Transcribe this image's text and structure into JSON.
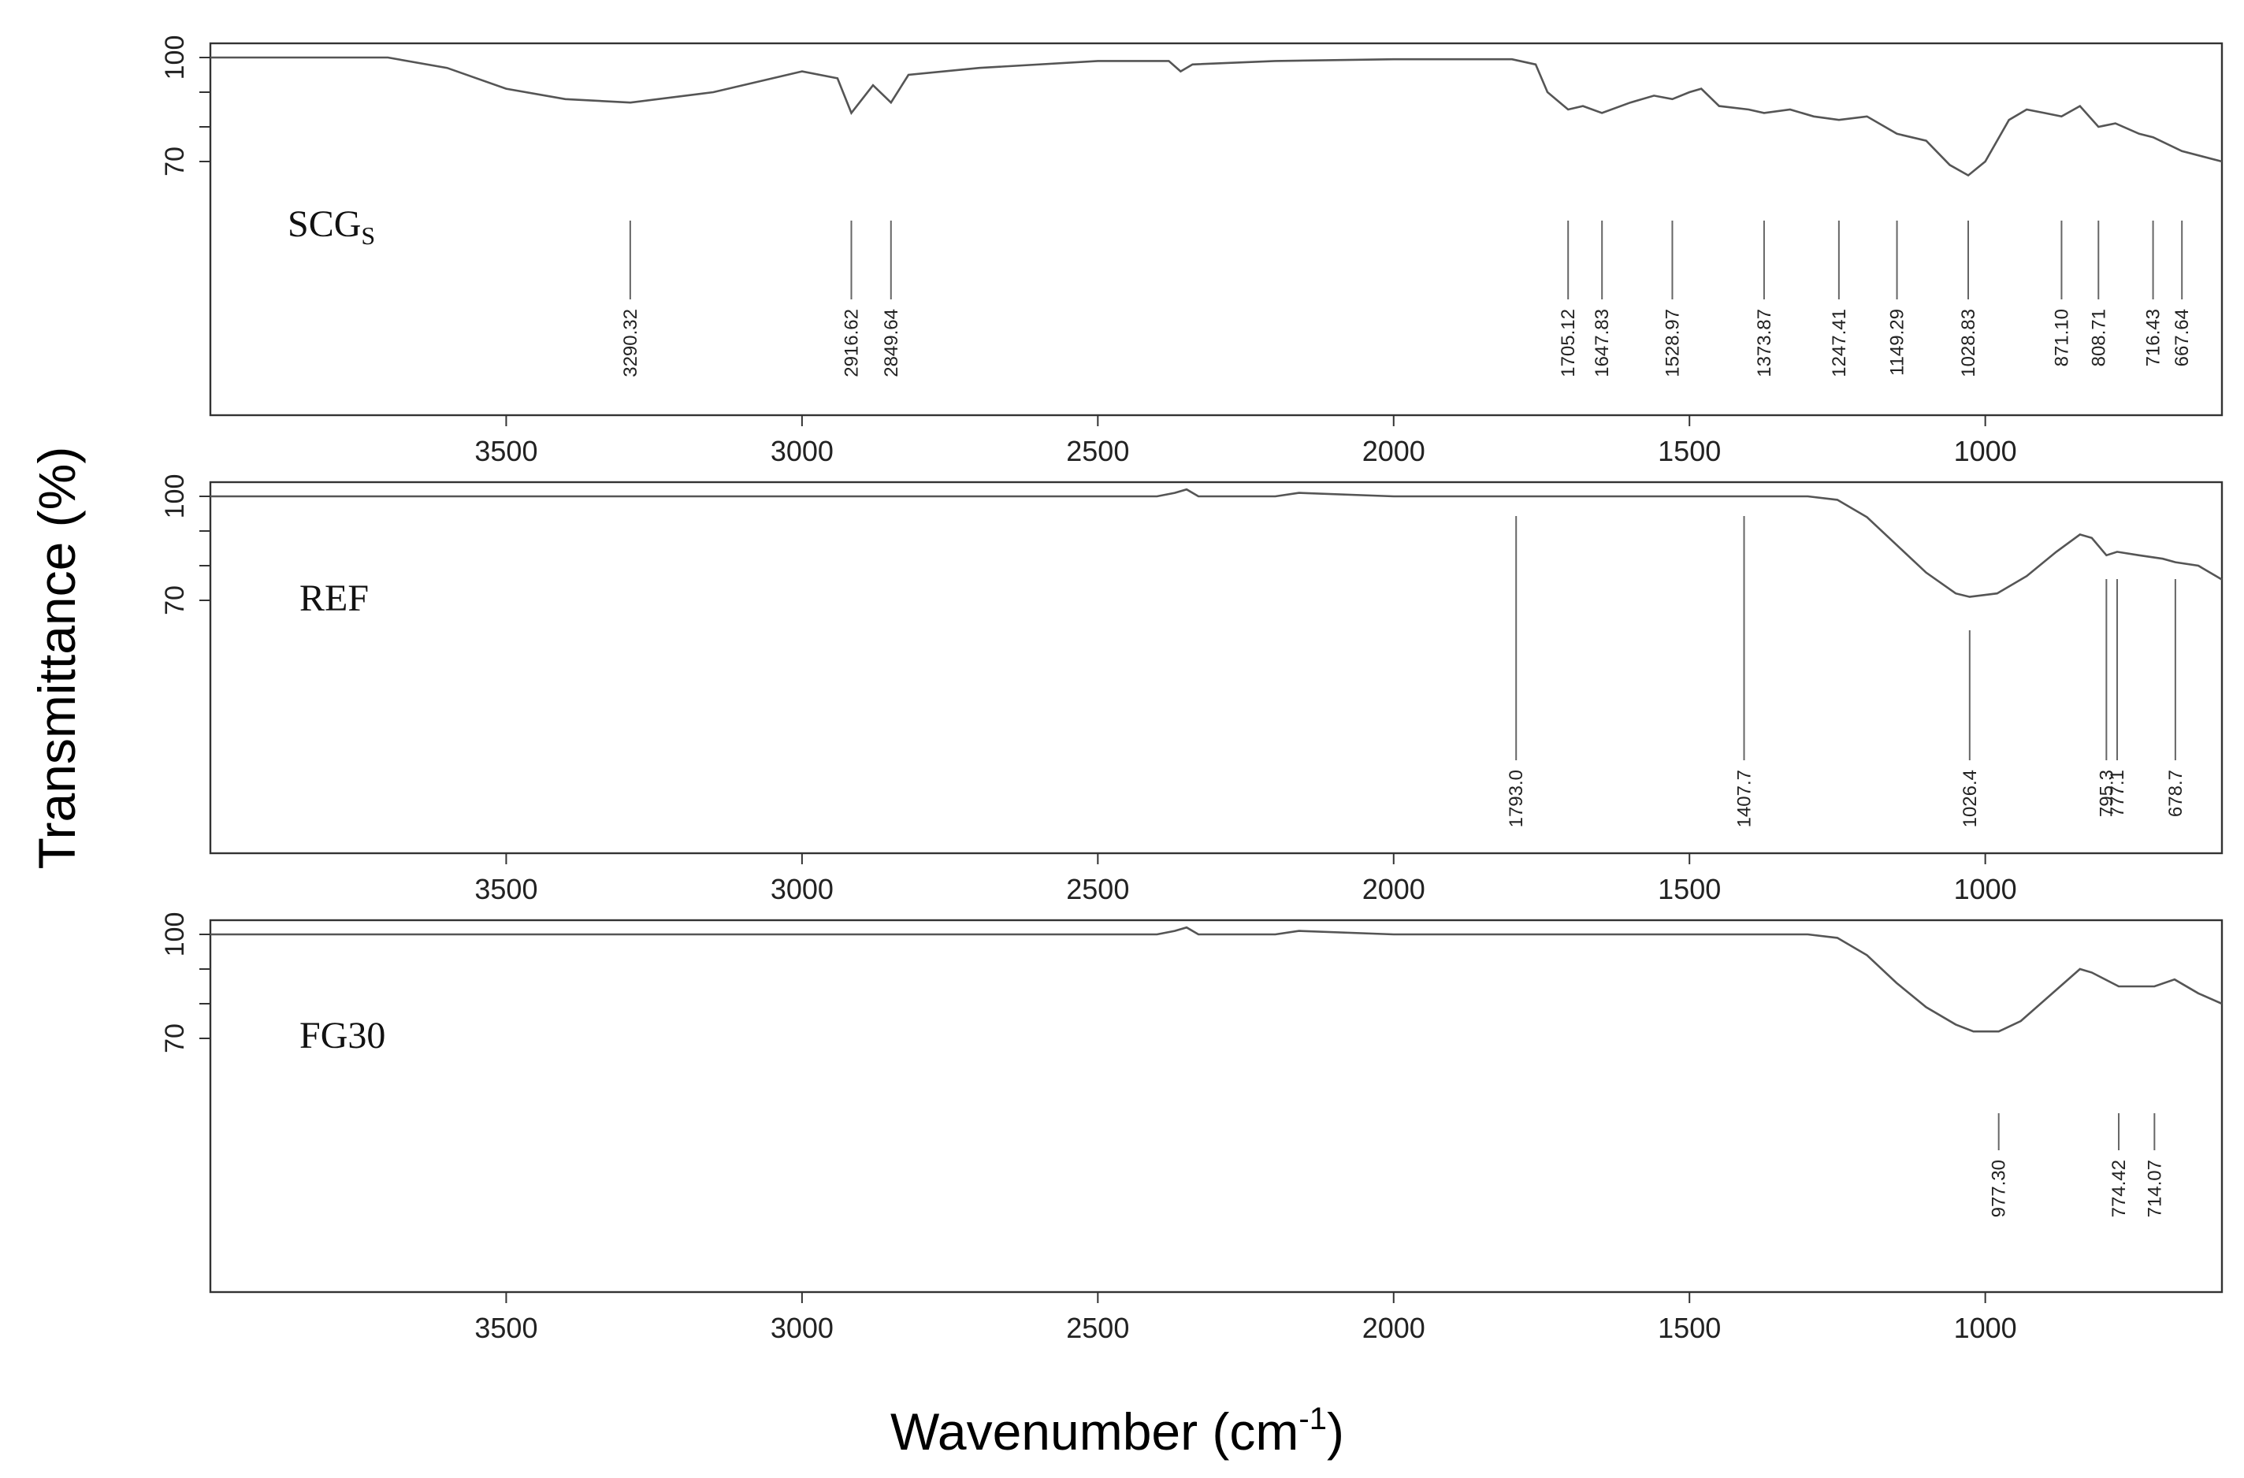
{
  "chart_data": {
    "type": "line",
    "ylabel_main": "Transmittance",
    "ylabel_unit": "(%)",
    "xlabel_main": "Wavenumber (cm",
    "xlabel_sup": "-1",
    "xlabel_end": ")",
    "xlim": [
      4000,
      600
    ],
    "x_ticks": [
      3500,
      3000,
      2500,
      2000,
      1500,
      1000
    ],
    "panels": [
      {
        "name": "SCG",
        "name_sub": "S",
        "ylim": [
          0,
          105
        ],
        "y_ticks": [
          100,
          70
        ],
        "y_minor": [
          100,
          90,
          80,
          70
        ],
        "series": [
          [
            4000,
            100
          ],
          [
            3700,
            100
          ],
          [
            3600,
            97
          ],
          [
            3500,
            91
          ],
          [
            3400,
            88
          ],
          [
            3290,
            87
          ],
          [
            3150,
            90
          ],
          [
            3000,
            96
          ],
          [
            2940,
            94
          ],
          [
            2916.62,
            84
          ],
          [
            2880,
            92
          ],
          [
            2849.64,
            87
          ],
          [
            2820,
            95
          ],
          [
            2700,
            97
          ],
          [
            2500,
            99
          ],
          [
            2380,
            99
          ],
          [
            2360,
            96
          ],
          [
            2340,
            98
          ],
          [
            2200,
            99
          ],
          [
            2000,
            99.5
          ],
          [
            1800,
            99.5
          ],
          [
            1760,
            98
          ],
          [
            1740,
            90
          ],
          [
            1705.12,
            85
          ],
          [
            1680,
            86
          ],
          [
            1647.83,
            84
          ],
          [
            1600,
            87
          ],
          [
            1560,
            89
          ],
          [
            1528.97,
            88
          ],
          [
            1500,
            90
          ],
          [
            1480,
            91
          ],
          [
            1450,
            86
          ],
          [
            1400,
            85
          ],
          [
            1373.87,
            84
          ],
          [
            1330,
            85
          ],
          [
            1290,
            83
          ],
          [
            1247.41,
            82
          ],
          [
            1200,
            83
          ],
          [
            1149.29,
            78
          ],
          [
            1100,
            76
          ],
          [
            1060,
            69
          ],
          [
            1028.83,
            66
          ],
          [
            1000,
            70
          ],
          [
            960,
            82
          ],
          [
            930,
            85
          ],
          [
            900,
            84
          ],
          [
            871.1,
            83
          ],
          [
            840,
            86
          ],
          [
            808.71,
            80
          ],
          [
            780,
            81
          ],
          [
            740,
            78
          ],
          [
            716.43,
            77
          ],
          [
            667.64,
            73
          ],
          [
            600,
            70
          ]
        ],
        "peaks": [
          {
            "x": 3290.32,
            "label": "3290.32"
          },
          {
            "x": 2916.62,
            "label": "2916.62"
          },
          {
            "x": 2849.64,
            "label": "2849.64"
          },
          {
            "x": 1705.12,
            "label": "1705.12"
          },
          {
            "x": 1647.83,
            "label": "1647.83"
          },
          {
            "x": 1528.97,
            "label": "1528.97"
          },
          {
            "x": 1373.87,
            "label": "1373.87"
          },
          {
            "x": 1247.41,
            "label": "1247.41"
          },
          {
            "x": 1149.29,
            "label": "1149.29"
          },
          {
            "x": 1028.83,
            "label": "1028.83"
          },
          {
            "x": 871.1,
            "label": "871.10"
          },
          {
            "x": 808.71,
            "label": "808.71"
          },
          {
            "x": 716.43,
            "label": "716.43"
          },
          {
            "x": 667.64,
            "label": "667.64"
          }
        ]
      },
      {
        "name": "REF",
        "name_sub": "",
        "ylim": [
          0,
          105
        ],
        "y_ticks": [
          100,
          70
        ],
        "y_minor": [
          100,
          90,
          80,
          70
        ],
        "series": [
          [
            4000,
            100
          ],
          [
            3000,
            100
          ],
          [
            2400,
            100
          ],
          [
            2370,
            101
          ],
          [
            2350,
            102
          ],
          [
            2330,
            100
          ],
          [
            2200,
            100
          ],
          [
            2160,
            101
          ],
          [
            2000,
            100
          ],
          [
            1300,
            100
          ],
          [
            1250,
            99
          ],
          [
            1200,
            94
          ],
          [
            1150,
            86
          ],
          [
            1100,
            78
          ],
          [
            1050,
            72
          ],
          [
            1026.4,
            71
          ],
          [
            980,
            72
          ],
          [
            930,
            77
          ],
          [
            880,
            84
          ],
          [
            840,
            89
          ],
          [
            820,
            88
          ],
          [
            795.3,
            83
          ],
          [
            777.1,
            84
          ],
          [
            740,
            83
          ],
          [
            700,
            82
          ],
          [
            678.7,
            81
          ],
          [
            640,
            80
          ],
          [
            600,
            76
          ]
        ],
        "peaks": [
          {
            "x": 1793.0,
            "label": "1793.0"
          },
          {
            "x": 1407.7,
            "label": "1407.7"
          },
          {
            "x": 1026.4,
            "label": "1026.4"
          },
          {
            "x": 795.3,
            "label": "795.3"
          },
          {
            "x": 777.1,
            "label": "777.1"
          },
          {
            "x": 678.7,
            "label": "678.7"
          }
        ]
      },
      {
        "name": "FG30",
        "name_sub": "",
        "ylim": [
          0,
          105
        ],
        "y_ticks": [
          100,
          70
        ],
        "y_minor": [
          100,
          90,
          80,
          70
        ],
        "series": [
          [
            4000,
            100
          ],
          [
            3000,
            100
          ],
          [
            2400,
            100
          ],
          [
            2370,
            101
          ],
          [
            2350,
            102
          ],
          [
            2330,
            100
          ],
          [
            2200,
            100
          ],
          [
            2160,
            101
          ],
          [
            2000,
            100
          ],
          [
            1300,
            100
          ],
          [
            1250,
            99
          ],
          [
            1200,
            94
          ],
          [
            1150,
            86
          ],
          [
            1100,
            79
          ],
          [
            1050,
            74
          ],
          [
            1020,
            72
          ],
          [
            977.3,
            72
          ],
          [
            940,
            75
          ],
          [
            880,
            84
          ],
          [
            840,
            90
          ],
          [
            820,
            89
          ],
          [
            774.42,
            85
          ],
          [
            740,
            85
          ],
          [
            714.07,
            85
          ],
          [
            680,
            87
          ],
          [
            640,
            83
          ],
          [
            600,
            80
          ]
        ],
        "peaks": [
          {
            "x": 977.3,
            "label": "977.30"
          },
          {
            "x": 774.42,
            "label": "774.42"
          },
          {
            "x": 714.07,
            "label": "714.07"
          }
        ]
      }
    ]
  }
}
